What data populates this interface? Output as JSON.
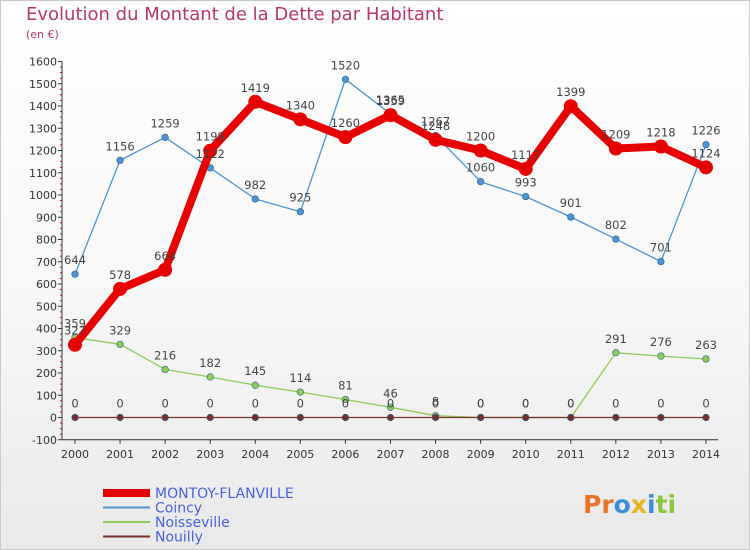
{
  "header": {
    "title": "Evolution du Montant de la Dette par Habitant",
    "subtitle": "(en €)"
  },
  "logo": {
    "text": "Proxiti"
  },
  "chart_data": {
    "type": "line",
    "title": "Evolution du Montant de la Dette par Habitant",
    "subtitle": "(en €)",
    "xlabel": "",
    "ylabel": "",
    "x": [
      "2000",
      "2001",
      "2002",
      "2003",
      "2004",
      "2005",
      "2006",
      "2007",
      "2008",
      "2009",
      "2010",
      "2011",
      "2012",
      "2013",
      "2014"
    ],
    "ylim": [
      -100,
      1600
    ],
    "yticks": [
      -100,
      0,
      100,
      200,
      300,
      400,
      500,
      600,
      700,
      800,
      900,
      1000,
      1100,
      1200,
      1300,
      1400,
      1500,
      1600
    ],
    "grid": false,
    "legend_position": "bottom-left",
    "series": [
      {
        "name": "Coincy",
        "color": "#4d94d1",
        "values": [
          644,
          1156,
          1259,
          1122,
          982,
          925,
          1520,
          1365,
          1267,
          1060,
          993,
          901,
          802,
          701,
          1226
        ],
        "labels": [
          "644",
          "1156",
          "1259",
          "1122",
          "982",
          "925",
          "1520",
          "1365",
          "1267",
          "1060",
          "993",
          "901",
          "802",
          "701",
          "1226"
        ]
      },
      {
        "name": "Noisseville",
        "color": "#8fcd5a",
        "values": [
          359,
          329,
          216,
          182,
          145,
          114,
          81,
          46,
          8,
          0,
          0,
          0,
          291,
          276,
          263
        ],
        "labels": [
          "359",
          "329",
          "216",
          "182",
          "145",
          "114",
          "81",
          "46",
          "8",
          "0",
          "0",
          "0",
          "291",
          "276",
          "263"
        ]
      },
      {
        "name": "Nouilly",
        "color": "#7a2e2e",
        "values": [
          0,
          0,
          0,
          0,
          0,
          0,
          0,
          0,
          0,
          0,
          0,
          0,
          0,
          0,
          0
        ],
        "labels": [
          "0",
          "0",
          "0",
          "0",
          "0",
          "0",
          "0",
          "0",
          "0",
          "0",
          "0",
          "0",
          "0",
          "0",
          "0"
        ]
      },
      {
        "name": "MONTOY-FLANVILLE",
        "color": "#e60000",
        "values": [
          327,
          578,
          664,
          1199,
          1419,
          1340,
          1260,
          1359,
          1248,
          1200,
          1117,
          1399,
          1209,
          1218,
          1124
        ],
        "labels": [
          "327",
          "578",
          "664",
          "1199",
          "1419",
          "1340",
          "1260",
          "1359",
          "1248",
          "1200",
          "1117",
          "1399",
          "1209",
          "1218",
          "1124"
        ]
      }
    ]
  }
}
